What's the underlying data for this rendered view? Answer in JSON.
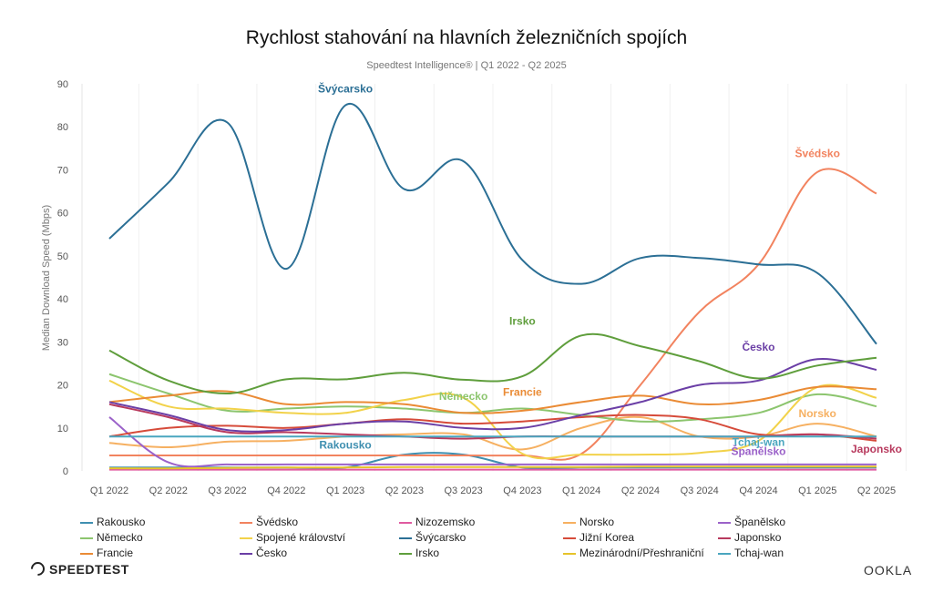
{
  "chart_data": {
    "type": "line",
    "title": "Rychlost stahování na hlavních železničních spojích",
    "subtitle": "Speedtest Intelligence® | Q1 2022 - Q2 2025",
    "xlabel": "",
    "ylabel": "Median Download Speed (Mbps)",
    "ylim": [
      0,
      90
    ],
    "yticks": [
      0,
      10,
      20,
      30,
      40,
      50,
      60,
      70,
      80,
      90
    ],
    "grid": "vertical",
    "legend_position": "bottom",
    "categories": [
      "Q1 2022",
      "Q2 2022",
      "Q3 2022",
      "Q4 2022",
      "Q1 2023",
      "Q2 2023",
      "Q3 2023",
      "Q4 2023",
      "Q1 2024",
      "Q2 2024",
      "Q3 2024",
      "Q4 2024",
      "Q1 2025",
      "Q2 2025"
    ],
    "series": [
      {
        "name": "Rakousko",
        "color": "#3f8fb0",
        "values": [
          0.8,
          0.8,
          0.8,
          0.8,
          0.8,
          3.8,
          3.8,
          0.8,
          0.8,
          0.8,
          0.8,
          0.8,
          0.8,
          0.8
        ]
      },
      {
        "name": "Švédsko",
        "color": "#f2835f",
        "values": [
          3.6,
          3.6,
          3.6,
          3.6,
          3.6,
          3.6,
          3.6,
          3.6,
          4,
          20,
          37,
          48,
          69.5,
          64.5
        ]
      },
      {
        "name": "Nizozemsko",
        "color": "#e05aa0",
        "values": [
          0.3,
          0.3,
          0.3,
          0.3,
          0.3,
          0.3,
          0.3,
          0.3,
          0.3,
          0.3,
          0.3,
          0.3,
          0.3,
          0.3
        ]
      },
      {
        "name": "Norsko",
        "color": "#f6b061",
        "values": [
          6.5,
          5.5,
          6.8,
          7,
          8,
          8.5,
          8.5,
          5,
          10,
          12.5,
          8,
          8,
          11,
          8
        ]
      },
      {
        "name": "Španělsko",
        "color": "#9b62c9",
        "values": [
          12.5,
          2,
          1.5,
          1.5,
          1.5,
          1.5,
          1.5,
          1.5,
          1.5,
          1.5,
          1.5,
          1.5,
          1.5,
          1.5
        ]
      },
      {
        "name": "Německo",
        "color": "#8cc56e",
        "values": [
          22.5,
          18,
          14,
          14.5,
          15,
          14.5,
          13.5,
          14.5,
          13,
          11.5,
          12,
          13.5,
          17.8,
          15
        ]
      },
      {
        "name": "Spojené království",
        "color": "#f2d24a",
        "values": [
          21,
          15,
          14.5,
          13.5,
          13.5,
          16.5,
          17,
          4,
          3.8,
          3.8,
          4.2,
          7,
          19.5,
          17
        ]
      },
      {
        "name": "Švýcarsko",
        "color": "#2b6f95",
        "values": [
          54,
          67,
          81,
          47,
          85,
          65.5,
          72,
          49,
          43.5,
          49.5,
          49.5,
          48,
          46,
          29.5
        ]
      },
      {
        "name": "Jižní Korea",
        "color": "#d64b3a",
        "values": [
          8,
          10,
          10.5,
          10,
          11,
          12,
          11,
          11.5,
          12.5,
          13,
          12,
          8.5,
          8.5,
          7
        ]
      },
      {
        "name": "Japonsko",
        "color": "#b83a5e",
        "values": [
          15.5,
          12.5,
          9,
          9,
          8.5,
          8,
          7.5,
          8,
          8,
          8,
          8,
          8,
          8.5,
          7.5
        ]
      },
      {
        "name": "Francie",
        "color": "#ea8b35",
        "values": [
          16,
          17.5,
          18.5,
          15.5,
          16,
          15.5,
          13.5,
          14,
          16,
          17.5,
          15.5,
          16.5,
          19.5,
          19
        ]
      },
      {
        "name": "Česko",
        "color": "#6b3fa6",
        "values": [
          16,
          13,
          9.5,
          9.5,
          11,
          11.5,
          10,
          10,
          13,
          16,
          20,
          21,
          26,
          23.5
        ]
      },
      {
        "name": "Irsko",
        "color": "#5f9e3c",
        "values": [
          28,
          21,
          18,
          21.3,
          21.3,
          22.8,
          21.2,
          22,
          31.5,
          29,
          25.5,
          21.5,
          24.5,
          26.3
        ]
      },
      {
        "name": "Mezinárodní/Přeshraniční",
        "color": "#e6c32a",
        "values": [
          0.6,
          0.6,
          0.7,
          0.8,
          0.8,
          0.9,
          0.9,
          0.9,
          0.9,
          1,
          1,
          1,
          1,
          1
        ]
      },
      {
        "name": "Tchaj-wan",
        "color": "#4aa6bf",
        "values": [
          8,
          8,
          8,
          8,
          8,
          8,
          8,
          8,
          8,
          8,
          8,
          8,
          8,
          8
        ]
      }
    ],
    "annotations": [
      {
        "text": "Švýcarsko",
        "series": "Švýcarsko",
        "x": "Q1 2023",
        "y": 88
      },
      {
        "text": "Švédsko",
        "series": "Švédsko",
        "x": "Q1 2025",
        "y": 73
      },
      {
        "text": "Irsko",
        "series": "Irsko",
        "x": "Q4 2023",
        "y": 34
      },
      {
        "text": "Česko",
        "series": "Česko",
        "x": "Q4 2024",
        "y": 28
      },
      {
        "text": "Francie",
        "series": "Francie",
        "x": "Q4 2023",
        "y": 17.5
      },
      {
        "text": "Německo",
        "series": "Německo",
        "x": "Q3 2023",
        "y": 16.5
      },
      {
        "text": "Norsko",
        "series": "Norsko",
        "x": "Q1 2025",
        "y": 12.5
      },
      {
        "text": "Rakousko",
        "series": "Rakousko",
        "x": "Q1 2023",
        "y": 5.2
      },
      {
        "text": "Tchaj-wan",
        "series": "Tchaj-wan",
        "x": "Q4 2024",
        "y": 5.8
      },
      {
        "text": "Španělsko",
        "series": "Španělsko",
        "x": "Q4 2024",
        "y": 3.7
      },
      {
        "text": "Japonsko",
        "series": "Japonsko",
        "x": "Q2 2025",
        "y": 4.2
      }
    ]
  },
  "branding": {
    "speedtest": "SPEEDTEST",
    "ookla": "OOKLA"
  }
}
